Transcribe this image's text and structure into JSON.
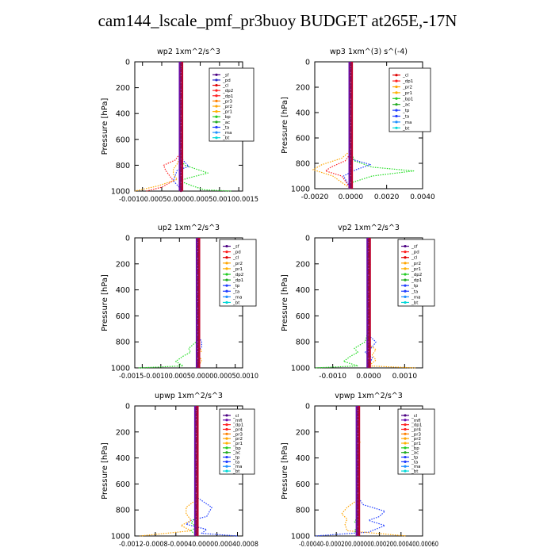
{
  "title": "cam144_lscale_pmf_pr3buoy  BUDGET at265E,-17N",
  "chart_data": [
    {
      "type": "line",
      "title": "wp2   1xm^2/s^3",
      "ylabel": "Pressure [hPa]",
      "ylim": [
        1000,
        0
      ],
      "yticks": [
        "0",
        "200",
        "400",
        "600",
        "800",
        "1000"
      ],
      "xlim": [
        -0.0012,
        0.0016
      ],
      "xticks": [
        -0.001,
        -0.0005,
        0,
        0.0005,
        0.001,
        0.0015
      ],
      "xtick_text": "-0.00100.00050.00000.00050.00100.0015",
      "legend": [
        "_sf",
        "_pd",
        "_cl",
        "_dp2",
        "_dp1",
        "_pr3",
        "_pr2",
        "_pr1",
        "_bp",
        "_ac",
        "_ta",
        "_ma",
        "_bt"
      ],
      "legend_colors": [
        "#4b0082",
        "#2828c8",
        "#e00000",
        "#ff2020",
        "#ff2020",
        "#ff8000",
        "#ffa500",
        "#ffb000",
        "#22cc22",
        "#22aa22",
        "#1e3cff",
        "#1e90ff",
        "#00d8d8"
      ],
      "series": [
        {
          "color": "#22dd22",
          "x": [
            0,
            0,
            0,
            0.0001,
            0.0004,
            0.0007,
            0.0003,
            -5e-05,
            0.0003,
            0.0006,
            0.0013
          ],
          "y": [
            0,
            700,
            760,
            800,
            830,
            860,
            890,
            920,
            960,
            990,
            1000
          ]
        },
        {
          "color": "#1e3cff",
          "x": [
            0,
            0,
            5e-05,
            0.0002,
            -0.0001,
            -0.00015,
            -0.0002,
            -5e-05,
            0
          ],
          "y": [
            0,
            700,
            760,
            810,
            840,
            880,
            920,
            970,
            1000
          ]
        },
        {
          "color": "#ff2020",
          "x": [
            0,
            0,
            -0.00015,
            -0.00045,
            -0.0004,
            -0.0003,
            -0.0002,
            -0.0005,
            -0.0009
          ],
          "y": [
            0,
            700,
            760,
            800,
            840,
            880,
            920,
            970,
            1000
          ]
        },
        {
          "color": "#ffa500",
          "x": [
            0,
            0,
            -0.0001,
            -0.0002,
            -0.0002,
            -0.0001,
            -0.0006,
            -0.0012
          ],
          "y": [
            0,
            720,
            790,
            830,
            870,
            910,
            960,
            1000
          ]
        },
        {
          "color": "#6a0dad",
          "x": [
            0,
            0,
            0,
            0
          ],
          "y": [
            0,
            700,
            900,
            1000
          ]
        }
      ]
    },
    {
      "type": "line",
      "title": "wp3   1xm^(3) s^(-4)",
      "ylabel": "Pressure [hPa]",
      "ylim": [
        1000,
        0
      ],
      "yticks": [
        "0",
        "200",
        "400",
        "600",
        "800",
        "1000"
      ],
      "xlim": [
        -0.002,
        0.004
      ],
      "xticks": [
        -0.002,
        0,
        0.002,
        0.004
      ],
      "xtick_labels": [
        "-0.0020",
        "0.0000",
        "0.0020",
        "0.0040"
      ],
      "legend": [
        "_cl",
        "_dp1",
        "_pr2",
        "_pr1",
        "_bp1",
        "_ac",
        "_tp",
        "_ta",
        "_ma",
        "_bt"
      ],
      "legend_colors": [
        "#e00000",
        "#ff2020",
        "#ffa500",
        "#ffb000",
        "#22cc22",
        "#22aa22",
        "#1e3cff",
        "#1e3cff",
        "#1e90ff",
        "#00d8d8"
      ],
      "series": [
        {
          "color": "#22dd22",
          "x": [
            0,
            0,
            0.0002,
            0.0012,
            0.0035,
            0.0012,
            0.0001,
            0
          ],
          "y": [
            0,
            700,
            780,
            830,
            860,
            900,
            950,
            1000
          ]
        },
        {
          "color": "#1e3cff",
          "x": [
            0,
            0,
            0.0001,
            0.0011,
            0.0003,
            -0.0004,
            0
          ],
          "y": [
            0,
            700,
            770,
            810,
            850,
            900,
            1000
          ]
        },
        {
          "color": "#ffa500",
          "x": [
            0,
            0,
            -0.0005,
            -0.0016,
            -0.0021,
            -0.001,
            0
          ],
          "y": [
            0,
            700,
            760,
            810,
            850,
            900,
            1000
          ]
        },
        {
          "color": "#ff2020",
          "x": [
            0,
            0,
            -0.0003,
            -0.0011,
            -0.0014,
            -0.0005,
            0
          ],
          "y": [
            0,
            720,
            780,
            830,
            860,
            900,
            1000
          ]
        },
        {
          "color": "#6a0dad",
          "x": [
            0,
            0,
            0
          ],
          "y": [
            0,
            800,
            1000
          ]
        }
      ]
    },
    {
      "type": "line",
      "title": "up2   1xm^2/s^3",
      "ylabel": "Pressure [hPa]",
      "ylim": [
        1000,
        0
      ],
      "yticks": [
        "0",
        "200",
        "400",
        "600",
        "800",
        "1000"
      ],
      "xlim": [
        -0.0017,
        0.0012
      ],
      "xticks": [
        -0.0015,
        -0.001,
        -0.0005,
        0,
        0.0005,
        0.001
      ],
      "xtick_text": "-0.0015-0.00100.00050.00000.00050.0010",
      "legend": [
        "_sf",
        "_pd",
        "_cl",
        "_pr2",
        "_pr1",
        "_dp2",
        "_dp1",
        "_tp",
        "_ta",
        "_ma",
        "_bt"
      ],
      "legend_colors": [
        "#4b0082",
        "#ff2020",
        "#e00000",
        "#ffa500",
        "#ffb000",
        "#22cc22",
        "#22aa22",
        "#1e3cff",
        "#1e3cff",
        "#1e90ff",
        "#00d8d8"
      ],
      "series": [
        {
          "color": "#22dd22",
          "x": [
            0,
            0,
            -5e-05,
            -0.00025,
            -0.0002,
            -0.0004,
            -0.0006,
            -0.0004,
            -0.0016
          ],
          "y": [
            0,
            700,
            800,
            850,
            880,
            910,
            950,
            985,
            1000
          ]
        },
        {
          "color": "#1e3cff",
          "x": [
            0,
            0,
            0.0001,
            0.0001,
            -5e-05,
            5e-05,
            0
          ],
          "y": [
            0,
            750,
            800,
            840,
            880,
            920,
            1000
          ]
        },
        {
          "color": "#ffa500",
          "x": [
            0,
            0,
            0.0001,
            0,
            0.0001,
            0
          ],
          "y": [
            0,
            820,
            870,
            900,
            940,
            1000
          ]
        },
        {
          "color": "#6a0dad",
          "x": [
            0,
            0,
            0
          ],
          "y": [
            0,
            800,
            1000
          ]
        },
        {
          "color": "#c00000",
          "x": [
            0,
            0,
            0
          ],
          "y": [
            0,
            800,
            1000
          ]
        }
      ]
    },
    {
      "type": "line",
      "title": "vp2   1xm^2/s^3",
      "ylabel": "Pressure [hPa]",
      "ylim": [
        1000,
        0
      ],
      "yticks": [
        "0",
        "200",
        "400",
        "600",
        "800",
        "1000"
      ],
      "xlim": [
        -0.0015,
        0.0015
      ],
      "xticks": [
        -0.001,
        0,
        0.001
      ],
      "xtick_labels": [
        "-0.0010",
        "0.0000",
        "0.0010"
      ],
      "legend": [
        "_sf",
        "_pd",
        "_cl",
        "_pr2",
        "_pr1",
        "_dp2",
        "_dp1",
        "_tp",
        "_ta",
        "_ma",
        "_bt"
      ],
      "legend_colors": [
        "#4b0082",
        "#ff2020",
        "#e00000",
        "#ffa500",
        "#ffb000",
        "#22cc22",
        "#22aa22",
        "#1e3cff",
        "#1e3cff",
        "#1e90ff",
        "#00d8d8"
      ],
      "series": [
        {
          "color": "#22dd22",
          "x": [
            0,
            0,
            -0.0001,
            -0.0004,
            -0.0003,
            -0.0005,
            -0.0007,
            -0.0003,
            -0.0015
          ],
          "y": [
            0,
            700,
            800,
            850,
            880,
            910,
            950,
            985,
            1000
          ]
        },
        {
          "color": "#1e3cff",
          "x": [
            0,
            0,
            0.0002,
            0.0001,
            -0.0001,
            0.0001,
            0
          ],
          "y": [
            0,
            750,
            800,
            840,
            880,
            920,
            1000
          ]
        },
        {
          "color": "#ffa500",
          "x": [
            0,
            0,
            0.0002,
            0.0001,
            0.0002,
            0,
            0.0013
          ],
          "y": [
            0,
            820,
            860,
            900,
            940,
            985,
            1000
          ]
        },
        {
          "color": "#ffa500",
          "x": [
            0,
            5e-05,
            0,
            0
          ],
          "y": [
            150,
            200,
            260,
            1000
          ]
        },
        {
          "color": "#6a0dad",
          "x": [
            0,
            0,
            0
          ],
          "y": [
            0,
            800,
            1000
          ]
        },
        {
          "color": "#c00000",
          "x": [
            0,
            0,
            0
          ],
          "y": [
            0,
            800,
            1000
          ]
        }
      ]
    },
    {
      "type": "line",
      "title": "upwp   1xm^2/s^3",
      "ylabel": "Pressure [hPa]",
      "ylim": [
        1000,
        0
      ],
      "yticks": [
        "0",
        "200",
        "400",
        "600",
        "800",
        "1000"
      ],
      "xlim": [
        -0.0012,
        0.0009
      ],
      "xticks": [
        -0.0012,
        -0.0008,
        -0.0004,
        0,
        0.0004,
        0.0008
      ],
      "xtick_text": "-0.0012-0.0008-0.00040.00000.00040.0008",
      "legend": [
        "_cl",
        "_mfl",
        "_dp1",
        "_pr4",
        "_pr3",
        "_pr2",
        "_pr1",
        "_bp",
        "_ac",
        "_tp",
        "_ta",
        "_ma",
        "_bt"
      ],
      "legend_colors": [
        "#4b0082",
        "#6a0dad",
        "#ff2020",
        "#ff2020",
        "#ff8000",
        "#ffa500",
        "#ffb000",
        "#22cc22",
        "#22aa22",
        "#1e3cff",
        "#1e3cff",
        "#1e90ff",
        "#00d8d8"
      ],
      "series": [
        {
          "color": "#1e3cff",
          "x": [
            0,
            0,
            0.0003,
            0.0002,
            -0.0001,
            -0.0002,
            0.0002,
            0.0001,
            0.0008
          ],
          "y": [
            0,
            700,
            780,
            850,
            880,
            910,
            950,
            980,
            1000
          ]
        },
        {
          "color": "#ffa500",
          "x": [
            0,
            0,
            -0.0002,
            -0.0002,
            -0.0001,
            -0.0003,
            -0.0001,
            -0.0011
          ],
          "y": [
            0,
            720,
            780,
            830,
            880,
            920,
            960,
            1000
          ]
        },
        {
          "color": "#22dd22",
          "x": [
            0,
            0,
            -0.0001,
            0,
            -0.0001,
            0
          ],
          "y": [
            0,
            850,
            900,
            930,
            960,
            1000
          ]
        },
        {
          "color": "#6a0dad",
          "x": [
            0,
            0,
            0
          ],
          "y": [
            0,
            800,
            1000
          ]
        },
        {
          "color": "#c00000",
          "x": [
            0,
            0,
            0
          ],
          "y": [
            0,
            800,
            1000
          ]
        }
      ]
    },
    {
      "type": "line",
      "title": "vpwp   1xm^2/s^3",
      "ylabel": "Pressure [hPa]",
      "ylim": [
        1000,
        0
      ],
      "yticks": [
        "0",
        "200",
        "400",
        "600",
        "800",
        "1000"
      ],
      "xlim": [
        -0.0004,
        0.0006
      ],
      "xticks": [
        -0.0004,
        -0.0002,
        0,
        0.0002,
        0.0004,
        0.0006
      ],
      "xtick_text": "-0.00040-0.000200.000000.000200.000400.00060",
      "legend": [
        "_cl",
        "_mfl",
        "_dp1",
        "_pr4",
        "_pr3",
        "_pr2",
        "_pr1",
        "_bp",
        "_ac",
        "_tp",
        "_ta",
        "_ma",
        "_bt"
      ],
      "legend_colors": [
        "#4b0082",
        "#6a0dad",
        "#ff2020",
        "#ff2020",
        "#ff8000",
        "#ffa500",
        "#ffb000",
        "#22cc22",
        "#22aa22",
        "#1e3cff",
        "#1e3cff",
        "#1e90ff",
        "#00d8d8"
      ],
      "series": [
        {
          "color": "#1e3cff",
          "x": [
            0,
            0,
            5e-05,
            0.00025,
            0.0002,
            0.0001,
            0.00025,
            0.0001,
            -0.0004
          ],
          "y": [
            0,
            700,
            760,
            810,
            850,
            880,
            920,
            970,
            1000
          ]
        },
        {
          "color": "#ffa500",
          "x": [
            0,
            0,
            -0.0001,
            -0.00015,
            -0.0001,
            -0.00012,
            -0.0001,
            0.00045
          ],
          "y": [
            0,
            720,
            780,
            830,
            870,
            910,
            960,
            1000
          ]
        },
        {
          "color": "#ffa500",
          "x": [
            0,
            2e-05,
            0,
            0
          ],
          "y": [
            240,
            280,
            320,
            1000
          ]
        },
        {
          "color": "#22dd22",
          "x": [
            0,
            0,
            -3e-05,
            0,
            -3e-05,
            0
          ],
          "y": [
            0,
            850,
            890,
            920,
            960,
            1000
          ]
        },
        {
          "color": "#6a0dad",
          "x": [
            0,
            0,
            0
          ],
          "y": [
            0,
            800,
            1000
          ]
        }
      ]
    }
  ]
}
